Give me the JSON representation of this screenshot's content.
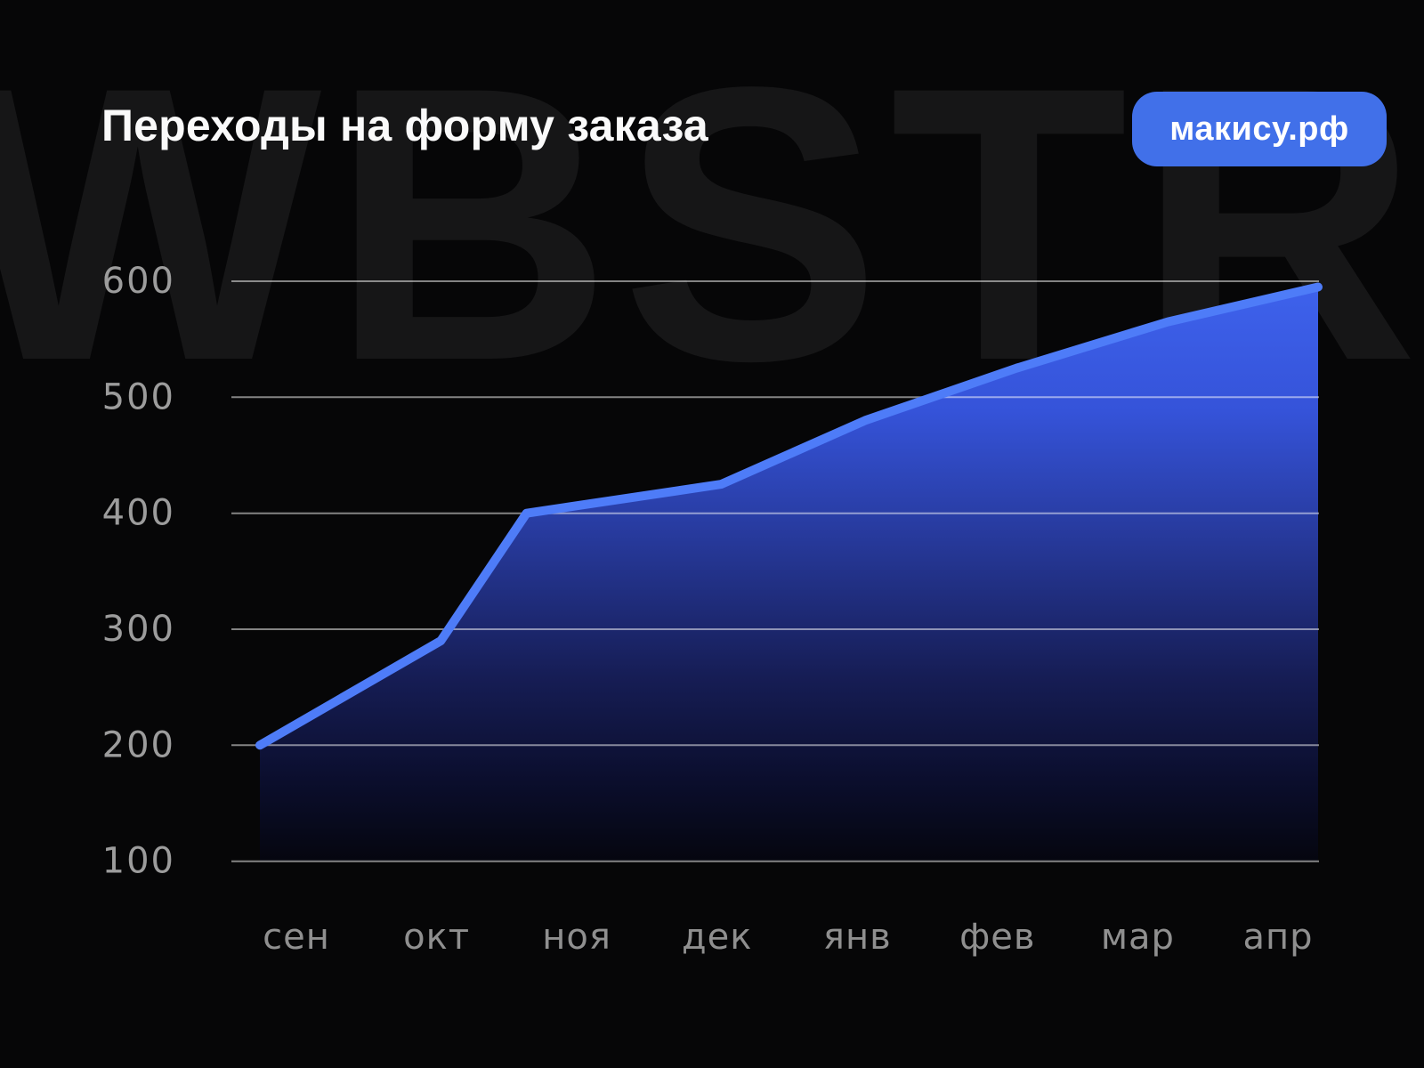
{
  "watermark": {
    "text": "WBSTR"
  },
  "header": {
    "title": "Переходы на форму заказа",
    "badge_label": "макису.рф",
    "badge_color": "#4170e9"
  },
  "chart_data": {
    "type": "area",
    "title": "Переходы на форму заказа",
    "categories": [
      "сен",
      "окт",
      "ноя",
      "дек",
      "янв",
      "фев",
      "мар",
      "апр"
    ],
    "values": [
      200,
      290,
      400,
      425,
      480,
      525,
      565,
      595
    ],
    "xlabel": "",
    "ylabel": "",
    "y_ticks": [
      600,
      500,
      400,
      300,
      200,
      100
    ],
    "ylim": [
      100,
      650
    ],
    "grid": "horizontal",
    "legend": "none",
    "line_color": "#4e7cf8",
    "fill_gradient": [
      "#3e62ec",
      "#3553d9",
      "#263898",
      "#161d55",
      "#0b0e2d",
      "#05060f"
    ],
    "gridline_color": "rgba(255,255,255,0.5)",
    "y_tick_label_color": "#9c9c9c",
    "x_tick_label_color": "#8f8f8f"
  }
}
